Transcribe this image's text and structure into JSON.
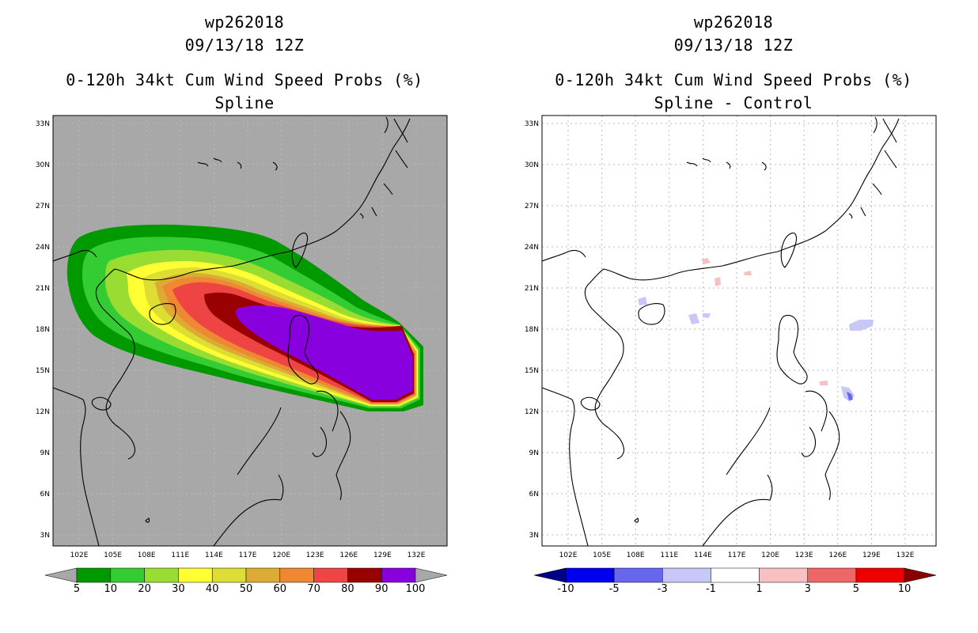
{
  "colors": {
    "map_background": "#a8a8a8",
    "diff_background": "#ffffff",
    "coastline": "#000000",
    "gridline": "#b9b9b9"
  },
  "left": {
    "title_line1": "wp262018",
    "title_line2": "09/13/18 12Z",
    "title_line3": "0-120h 34kt Cum Wind Speed Probs (%)",
    "title_line4": "Spline",
    "lat_labels": [
      "33N",
      "30N",
      "27N",
      "24N",
      "21N",
      "18N",
      "15N",
      "12N",
      "9N",
      "6N",
      "3N"
    ],
    "lon_labels": [
      "102E",
      "105E",
      "108E",
      "111E",
      "114E",
      "117E",
      "120E",
      "123E",
      "126E",
      "129E",
      "132E"
    ],
    "colorbar": {
      "colors": [
        "#009900",
        "#33cc33",
        "#99dd33",
        "#ffff33",
        "#dddd33",
        "#ddaa33",
        "#ee8833",
        "#ee4444",
        "#990000",
        "#8800dd"
      ],
      "labels": [
        "5",
        "10",
        "20",
        "30",
        "40",
        "50",
        "60",
        "70",
        "80",
        "90",
        "100"
      ],
      "under_color": "#a8a8a8",
      "over_color": "#a8a8a8"
    }
  },
  "right": {
    "title_line1": "wp262018",
    "title_line2": "09/13/18 12Z",
    "title_line3": "0-120h 34kt Cum Wind Speed Probs (%)",
    "title_line4": "Spline - Control",
    "lat_labels": [
      "33N",
      "30N",
      "27N",
      "24N",
      "21N",
      "18N",
      "15N",
      "12N",
      "9N",
      "6N",
      "3N"
    ],
    "lon_labels": [
      "102E",
      "105E",
      "108E",
      "111E",
      "114E",
      "117E",
      "120E",
      "123E",
      "126E",
      "129E",
      "132E"
    ],
    "colorbar": {
      "colors": [
        "#0000ee",
        "#6666ee",
        "#c8c8f8",
        "#ffffff",
        "#f8c0c0",
        "#ee6666",
        "#ee0000"
      ],
      "labels": [
        "-10",
        "-5",
        "-3",
        "-1",
        "1",
        "3",
        "5",
        "10"
      ],
      "under_color": "#000088",
      "over_color": "#880000"
    }
  }
}
